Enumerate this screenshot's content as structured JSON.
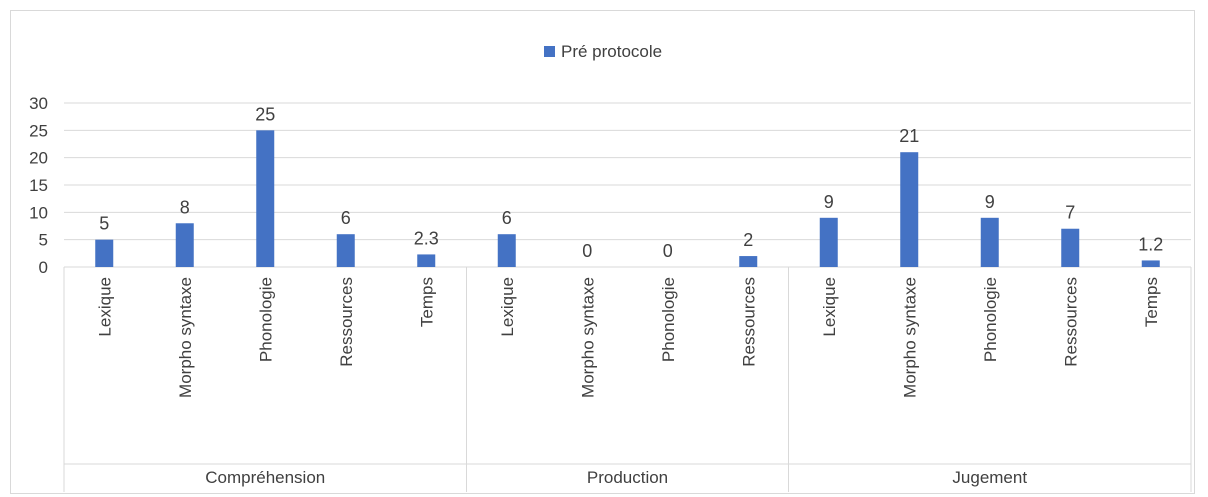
{
  "chart_data": {
    "type": "bar",
    "legend_position": "top",
    "grid": true,
    "ylim": [
      0,
      30
    ],
    "yticks": [
      "0",
      "5",
      "10",
      "15",
      "20",
      "25",
      "30"
    ],
    "bar_color": "#4472c4",
    "series": [
      {
        "name": "Pré protocole"
      }
    ],
    "groups": [
      {
        "label": "Compréhension",
        "categories": [
          "Lexique",
          "Morpho syntaxe",
          "Phonologie",
          "Ressources",
          "Temps"
        ],
        "values": [
          5,
          8,
          25,
          6,
          2.3
        ]
      },
      {
        "label": "Production",
        "categories": [
          "Lexique",
          "Morpho syntaxe",
          "Phonologie",
          "Ressources"
        ],
        "values": [
          6,
          0,
          0,
          2
        ]
      },
      {
        "label": "Jugement",
        "categories": [
          "Lexique",
          "Morpho syntaxe",
          "Phonologie",
          "Ressources",
          "Temps"
        ],
        "values": [
          9,
          21,
          9,
          7,
          1.2
        ]
      }
    ]
  }
}
